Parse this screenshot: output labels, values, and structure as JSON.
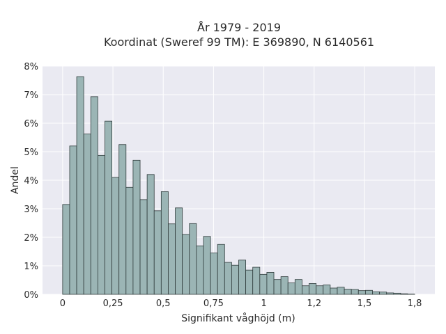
{
  "chart_data": {
    "type": "bar",
    "title_lines": [
      "År 1979 - 2019",
      "Koordinat (Sweref 99 TM): E 369890, N 6140561"
    ],
    "xlabel": "Signifikant våghöjd (m)",
    "ylabel": "Andel",
    "xlim": [
      -0.1,
      1.85
    ],
    "ylim": [
      0,
      8
    ],
    "bin_width": 0.035,
    "bin_start": 0.0,
    "x_ticks": [
      0,
      0.25,
      0.5,
      0.75,
      1,
      1.25,
      1.5,
      1.75
    ],
    "x_tick_labels": [
      "0",
      "0,25",
      "0,5",
      "0,75",
      "1",
      "1,2",
      "1,5",
      "1,8"
    ],
    "y_ticks": [
      0,
      1,
      2,
      3,
      4,
      5,
      6,
      7,
      8
    ],
    "y_tick_labels": [
      "0%",
      "1%",
      "2%",
      "3%",
      "4%",
      "5%",
      "6%",
      "7%",
      "8%"
    ],
    "values": [
      3.15,
      5.2,
      7.63,
      5.62,
      6.93,
      4.87,
      6.07,
      4.1,
      5.25,
      3.75,
      4.7,
      3.32,
      4.2,
      2.93,
      3.6,
      2.47,
      3.03,
      2.1,
      2.48,
      1.7,
      2.03,
      1.45,
      1.75,
      1.12,
      1.02,
      1.2,
      0.85,
      0.95,
      0.7,
      0.77,
      0.52,
      0.62,
      0.4,
      0.52,
      0.3,
      0.38,
      0.3,
      0.33,
      0.22,
      0.25,
      0.18,
      0.17,
      0.13,
      0.14,
      0.09,
      0.08,
      0.05,
      0.04,
      0.02,
      0.01
    ],
    "background_color": "#eaeaf2",
    "bar_color": "#9bb5b5",
    "edge_color": "#2f3b3b",
    "grid": true
  }
}
